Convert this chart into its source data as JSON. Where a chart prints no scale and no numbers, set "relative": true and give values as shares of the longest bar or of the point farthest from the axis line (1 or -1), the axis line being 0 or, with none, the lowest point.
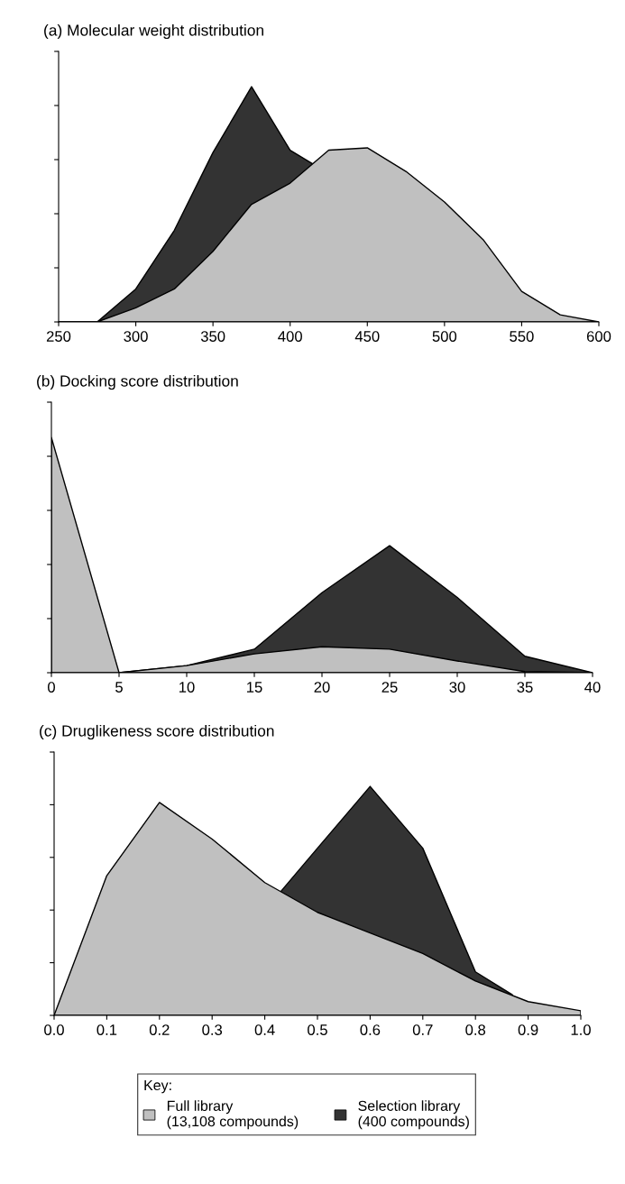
{
  "chart_data": [
    {
      "type": "area",
      "title": "(a) Molecular weight distribution",
      "relative": true,
      "tick_labels": "x",
      "xlim": [
        250,
        600
      ],
      "xticks": [
        250,
        300,
        350,
        400,
        450,
        500,
        550,
        600
      ],
      "series": [
        {
          "color": "#c0c0c0",
          "x": [
            250,
            275,
            300,
            325,
            350,
            375,
            400,
            425,
            450,
            475,
            500,
            525,
            550,
            575,
            600
          ],
          "values": [
            0,
            0,
            0.06,
            0.14,
            0.3,
            0.5,
            0.59,
            0.73,
            0.74,
            0.64,
            0.51,
            0.35,
            0.13,
            0.03,
            0
          ]
        },
        {
          "color": "#333333",
          "x": [
            250,
            275,
            300,
            325,
            350,
            375,
            400,
            415
          ],
          "values": [
            0,
            0,
            0.14,
            0.39,
            0.72,
            1,
            0.73,
            0.67
          ]
        }
      ]
    },
    {
      "type": "area",
      "title": "(b) Docking score distribution",
      "relative": true,
      "tick_labels": "x",
      "xlim": [
        0,
        40
      ],
      "xticks": [
        0,
        5,
        10,
        15,
        20,
        25,
        30,
        35,
        40
      ],
      "series": [
        {
          "color": "#c0c0c0",
          "x": [
            0,
            5,
            10,
            15,
            20,
            25,
            30,
            35,
            40
          ],
          "values": [
            1,
            0,
            0.03,
            0.08,
            0.11,
            0.1,
            0.05,
            0.005,
            0
          ]
        },
        {
          "color": "#333333",
          "x": [
            5,
            10,
            15,
            20,
            25,
            30,
            35,
            40
          ],
          "values": [
            0,
            0.03,
            0.1,
            0.34,
            0.54,
            0.32,
            0.07,
            0
          ]
        }
      ]
    },
    {
      "type": "area",
      "title": "(c) Druglikeness score distribution",
      "relative": true,
      "tick_labels": "x",
      "xlim": [
        0,
        1
      ],
      "xticks": [
        {
          "value": 0,
          "label": "0.0"
        },
        {
          "value": 0.1,
          "label": "0.1"
        },
        {
          "value": 0.2,
          "label": "0.2"
        },
        {
          "value": 0.3,
          "label": "0.3"
        },
        {
          "value": 0.4,
          "label": "0.4"
        },
        {
          "value": 0.5,
          "label": "0.5"
        },
        {
          "value": 0.6,
          "label": "0.6"
        },
        {
          "value": 0.7,
          "label": "0.7"
        },
        {
          "value": 0.8,
          "label": "0.8"
        },
        {
          "value": 0.9,
          "label": "0.9"
        },
        {
          "value": 1,
          "label": "1.0"
        }
      ],
      "legend": "bottom",
      "legend_title": "Key:",
      "series": [
        {
          "name": "Full library\n(13,108 compounds)",
          "color": "#c0c0c0",
          "x": [
            0,
            0.1,
            0.2,
            0.3,
            0.4,
            0.5,
            0.6,
            0.7,
            0.8,
            0.9,
            1.0
          ],
          "values": [
            0,
            0.61,
            0.93,
            0.77,
            0.58,
            0.45,
            0.36,
            0.27,
            0.15,
            0.06,
            0.02
          ]
        },
        {
          "name": "Selection library\n(400 compounds)",
          "color": "#333333",
          "x": [
            0.43,
            0.5,
            0.6,
            0.7,
            0.8,
            0.87
          ],
          "values": [
            0.54,
            0.73,
            1,
            0.73,
            0.19,
            0.09
          ]
        }
      ]
    }
  ]
}
